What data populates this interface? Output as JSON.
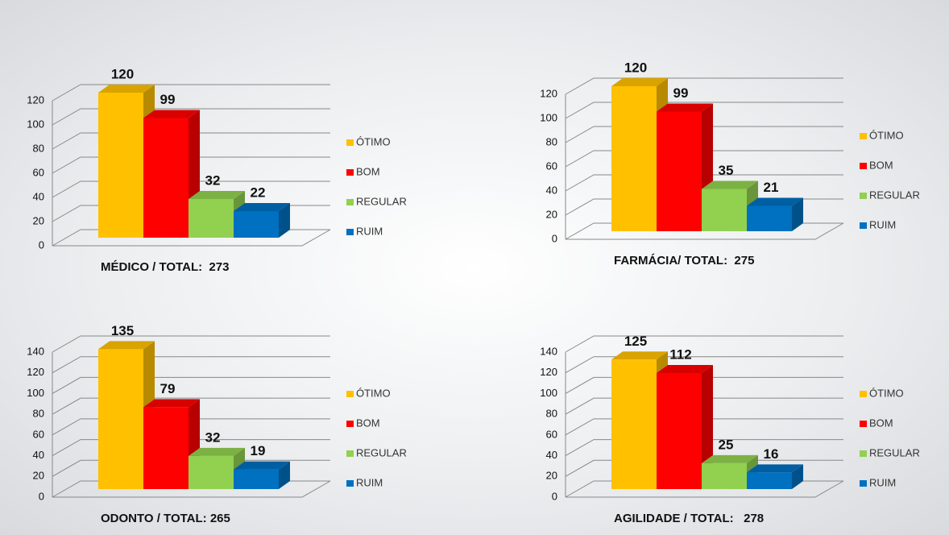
{
  "chart_data": [
    {
      "type": "bar",
      "title": "MÉDICO / TOTAL:  273",
      "categories": [
        "ÓTIMO",
        "BOM",
        "REGULAR",
        "RUIM"
      ],
      "values": [
        120,
        99,
        32,
        22
      ],
      "colors": [
        "#ffc000",
        "#ff0000",
        "#92d050",
        "#0070c0"
      ],
      "ylim": [
        0,
        120
      ],
      "yticks": [
        0,
        20,
        40,
        60,
        80,
        100,
        120
      ],
      "grid": true,
      "legend": "right"
    },
    {
      "type": "bar",
      "title": "FARMÁCIA/ TOTAL:  275",
      "categories": [
        "ÓTIMO",
        "BOM",
        "REGULAR",
        "RUIM"
      ],
      "values": [
        120,
        99,
        35,
        21
      ],
      "colors": [
        "#ffc000",
        "#ff0000",
        "#92d050",
        "#0070c0"
      ],
      "ylim": [
        0,
        120
      ],
      "yticks": [
        0,
        20,
        40,
        60,
        80,
        100,
        120
      ],
      "grid": true,
      "legend": "right"
    },
    {
      "type": "bar",
      "title": "ODONTO / TOTAL: 265",
      "categories": [
        "ÓTIMO",
        "BOM",
        "REGULAR",
        "RUIM"
      ],
      "values": [
        135,
        79,
        32,
        19
      ],
      "colors": [
        "#ffc000",
        "#ff0000",
        "#92d050",
        "#0070c0"
      ],
      "ylim": [
        0,
        140
      ],
      "yticks": [
        0,
        20,
        40,
        60,
        80,
        100,
        120,
        140
      ],
      "grid": true,
      "legend": "right"
    },
    {
      "type": "bar",
      "title": "AGILIDADE / TOTAL:   278",
      "categories": [
        "ÓTIMO",
        "BOM",
        "REGULAR",
        "RUIM"
      ],
      "values": [
        125,
        112,
        25,
        16
      ],
      "colors": [
        "#ffc000",
        "#ff0000",
        "#92d050",
        "#0070c0"
      ],
      "ylim": [
        0,
        140
      ],
      "yticks": [
        0,
        20,
        40,
        60,
        80,
        100,
        120,
        140
      ],
      "grid": true,
      "legend": "right"
    }
  ]
}
